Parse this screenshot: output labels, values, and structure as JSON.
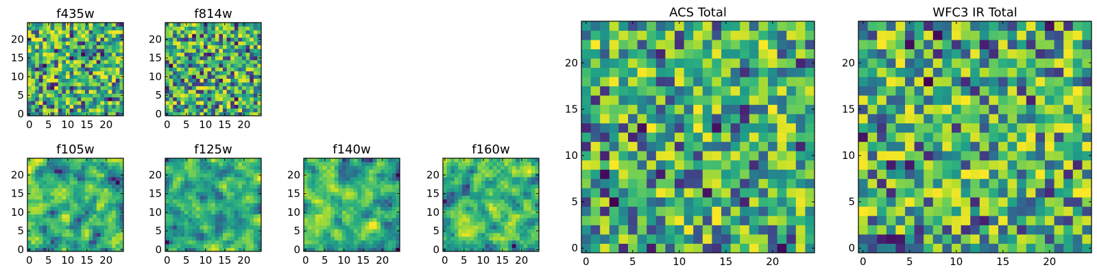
{
  "figure": {
    "colormap": [
      "#440154",
      "#3b528b",
      "#21918c",
      "#5ec962",
      "#fde725"
    ]
  },
  "chart_data": [
    {
      "type": "heatmap",
      "title": "f435w",
      "grid_size": 25,
      "xlim": [
        0,
        24
      ],
      "ylim": [
        0,
        24
      ],
      "xticks": [
        0,
        5,
        10,
        15,
        20
      ],
      "yticks": [
        0,
        5,
        10,
        15,
        20
      ],
      "seed": 11,
      "smooth": 0,
      "legend": "none",
      "grid": false
    },
    {
      "type": "heatmap",
      "title": "f814w",
      "grid_size": 25,
      "xlim": [
        0,
        24
      ],
      "ylim": [
        0,
        24
      ],
      "xticks": [
        0,
        5,
        10,
        15,
        20
      ],
      "yticks": [
        0,
        5,
        10,
        15,
        20
      ],
      "seed": 23,
      "smooth": 0,
      "legend": "none",
      "grid": false
    },
    {
      "type": "heatmap",
      "title": "f105w",
      "grid_size": 25,
      "xlim": [
        0,
        24
      ],
      "ylim": [
        0,
        24
      ],
      "xticks": [
        0,
        5,
        10,
        15,
        20
      ],
      "yticks": [
        0,
        5,
        10,
        15,
        20
      ],
      "seed": 37,
      "smooth": 1,
      "legend": "none",
      "grid": false
    },
    {
      "type": "heatmap",
      "title": "f125w",
      "grid_size": 25,
      "xlim": [
        0,
        24
      ],
      "ylim": [
        0,
        24
      ],
      "xticks": [
        0,
        5,
        10,
        15,
        20
      ],
      "yticks": [
        0,
        5,
        10,
        15,
        20
      ],
      "seed": 41,
      "smooth": 1,
      "legend": "none",
      "grid": false
    },
    {
      "type": "heatmap",
      "title": "f140w",
      "grid_size": 25,
      "xlim": [
        0,
        24
      ],
      "ylim": [
        0,
        24
      ],
      "xticks": [
        0,
        5,
        10,
        15,
        20
      ],
      "yticks": [
        0,
        5,
        10,
        15,
        20
      ],
      "seed": 53,
      "smooth": 1,
      "legend": "none",
      "grid": false
    },
    {
      "type": "heatmap",
      "title": "f160w",
      "grid_size": 25,
      "xlim": [
        0,
        24
      ],
      "ylim": [
        0,
        24
      ],
      "xticks": [
        0,
        5,
        10,
        15,
        20
      ],
      "yticks": [
        0,
        5,
        10,
        15,
        20
      ],
      "seed": 67,
      "smooth": 1,
      "legend": "none",
      "grid": false
    },
    {
      "type": "heatmap",
      "title": "ACS Total",
      "grid_size": 25,
      "xlim": [
        0,
        24
      ],
      "ylim": [
        0,
        24
      ],
      "xticks": [
        0,
        5,
        10,
        15,
        20
      ],
      "yticks": [
        0,
        5,
        10,
        15,
        20
      ],
      "seed": 79,
      "smooth": 0,
      "legend": "none",
      "grid": false
    },
    {
      "type": "heatmap",
      "title": "WFC3 IR Total",
      "grid_size": 25,
      "xlim": [
        0,
        24
      ],
      "ylim": [
        0,
        24
      ],
      "xticks": [
        0,
        5,
        10,
        15,
        20
      ],
      "yticks": [
        0,
        5,
        10,
        15,
        20
      ],
      "seed": 97,
      "smooth": 0,
      "legend": "none",
      "grid": false
    }
  ]
}
